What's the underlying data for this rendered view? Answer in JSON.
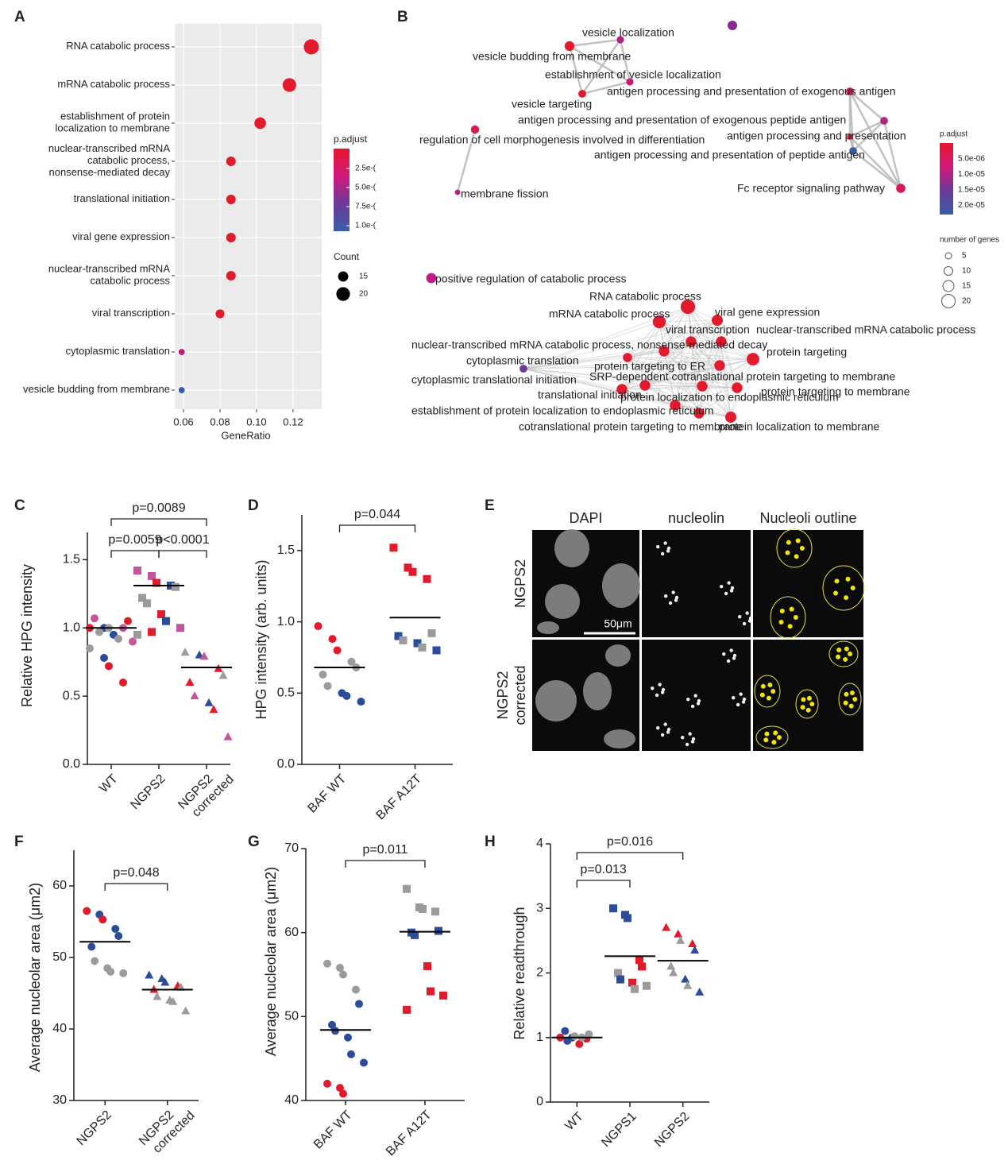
{
  "chart_data": [
    {
      "type": "dotplot",
      "panel": "A",
      "categories": [
        [
          "RNA catabolic process"
        ],
        [
          "mRNA catabolic process"
        ],
        [
          "establishment of protein",
          "localization to membrane"
        ],
        [
          "nuclear-transcribed mRNA",
          "catabolic process,",
          "nonsense-mediated decay"
        ],
        [
          "translational initiation"
        ],
        [
          "viral gene expression"
        ],
        [
          "nuclear-transcribed mRNA",
          "catabolic process"
        ],
        [
          "viral transcription"
        ],
        [
          "cytoplasmic translation"
        ],
        [
          "vesicle budding from membrane"
        ]
      ],
      "x": [
        0.13,
        0.118,
        0.102,
        0.086,
        0.086,
        0.086,
        0.086,
        0.08,
        0.059,
        0.059
      ],
      "counts": [
        22,
        20,
        17,
        14,
        14,
        14,
        14,
        13,
        9,
        9
      ],
      "colors": [
        "#e31a2c",
        "#e31a2c",
        "#e31a2c",
        "#e31a2c",
        "#e31a2c",
        "#e31a2c",
        "#e31a2c",
        "#e31a2c",
        "#c21a7a",
        "#3a5ba8"
      ],
      "xlabel": "GeneRatio",
      "xlim": [
        0.0552,
        0.1357
      ],
      "xticks": [
        {
          "value": 0.06,
          "label": "0.06"
        },
        {
          "value": 0.08,
          "label": "0.08"
        },
        {
          "value": 0.1,
          "label": "0.10"
        },
        {
          "value": 0.12,
          "label": "0.12"
        }
      ],
      "color_title": "p.adjust",
      "color_labels": [
        "2.5e-(",
        "5.0e-(",
        "7.5e-(",
        "1.0e-("
      ],
      "colorscale": [
        "#e8172f",
        "#d0187a",
        "#6b3a9b",
        "#3a5da8"
      ],
      "size_title": "Count",
      "size_labels": [
        15,
        20
      ]
    },
    {
      "type": "network",
      "panel": "B",
      "nodes": [
        {
          "label": "vesicle localization",
          "size": 7,
          "color": "#a8257f"
        },
        {
          "label": "vesicle budding from membrane",
          "size": 12,
          "color": "#e31a2c"
        },
        {
          "label": "establishment of vesicle localization",
          "size": 7,
          "color": "#c0207a"
        },
        {
          "label": "antigen processing and presentation of exogenous antigen",
          "size": 8,
          "color": "#d41a4e"
        },
        {
          "label": "vesicle targeting",
          "size": 8,
          "color": "#e31a2c"
        },
        {
          "label": "antigen processing and presentation of exogenous peptide antigen",
          "size": 8,
          "color": "#b0267f"
        },
        {
          "label": "regulation of cell morphogenesis involved in differentiation",
          "size": 9,
          "color": "#d41a4e"
        },
        {
          "label": "antigen processing and presentation",
          "size": 4,
          "color": "#e31a2c"
        },
        {
          "label": "antigen processing and presentation of peptide antigen",
          "size": 8,
          "color": "#3a5da8"
        },
        {
          "label": "Fc receptor signaling pathway",
          "size": 11,
          "color": "#d41a4e"
        },
        {
          "label": "membrane fission",
          "size": 3,
          "color": "#b8207a"
        },
        {
          "label": "positive regulation of catabolic process",
          "size": 13,
          "color": "#c2188a"
        },
        {
          "label": "RNA catabolic process",
          "size": 22,
          "color": "#e31a2c"
        },
        {
          "label": "viral gene expression",
          "size": 15,
          "color": "#e31a2c"
        },
        {
          "label": "mRNA catabolic process",
          "size": 19,
          "color": "#e31a2c"
        },
        {
          "label": "viral transcription",
          "size": 14,
          "color": "#e31a2c"
        },
        {
          "label": "nuclear-transcribed mRNA catabolic process",
          "size": 14,
          "color": "#e31a2c"
        },
        {
          "label": "nuclear-transcribed mRNA catabolic process, nonsense-mediated decay",
          "size": 14,
          "color": "#e31a2c"
        },
        {
          "label": "protein targeting",
          "size": 18,
          "color": "#e31a2c"
        },
        {
          "label": "cytoplasmic translation",
          "size": 8,
          "color": "#6a3a9b"
        },
        {
          "label": "protein targeting to ER",
          "size": 14,
          "color": "#e31a2c"
        },
        {
          "label": "SRP-dependent cotranslational protein targeting to membrane",
          "size": 14,
          "color": "#e31a2c"
        },
        {
          "label": "cytoplasmic translational initiation",
          "size": 11,
          "color": "#e31a2c"
        },
        {
          "label": "protein targeting to membrane",
          "size": 14,
          "color": "#e31a2c"
        },
        {
          "label": "translational initiation",
          "size": 14,
          "color": "#e31a2c"
        },
        {
          "label": "protein localization to endoplasmic reticulum",
          "size": 14,
          "color": "#e31a2c"
        },
        {
          "label": "establishment of protein localization to endoplasmic reticulum",
          "size": 14,
          "color": "#e31a2c"
        },
        {
          "label": "cotranslational protein targeting to membrane",
          "size": 14,
          "color": "#e31a2c"
        },
        {
          "label": "protein localization to membrane",
          "size": 15,
          "color": "#e31a2c"
        }
      ],
      "color_title": "p.adjust",
      "color_labels": [
        "5.0e-06",
        "1.0e-05",
        "1.5e-05",
        "2.0e-05"
      ],
      "colorscale": [
        "#e8172f",
        "#d0187a",
        "#6b3a9b",
        "#3a5da8"
      ],
      "size_title": "number of genes",
      "size_labels": [
        5,
        10,
        15,
        20
      ]
    },
    {
      "type": "strip",
      "panel": "C",
      "ylabel": "Relative HPG intensity",
      "categories": [
        [
          "WT"
        ],
        [
          "NGPS2"
        ],
        [
          "NGPS2",
          "corrected"
        ]
      ],
      "markers": [
        "circle",
        "square",
        "triangle"
      ],
      "ylim": [
        0,
        1.7
      ],
      "yticks": [
        {
          "value": 0,
          "label": "0.0"
        },
        0.5,
        {
          "value": 1,
          "label": "1.0"
        },
        1.5
      ],
      "points": [
        [
          1.0,
          1.0,
          1.0,
          1.0,
          1.05,
          1.07,
          0.97,
          0.95,
          0.92,
          0.9,
          0.85,
          0.78,
          0.72,
          0.6
        ],
        [
          1.42,
          1.38,
          1.33,
          1.31,
          1.3,
          1.22,
          1.18,
          1.1,
          1.05,
          1.0,
          0.95,
          0.97
        ],
        [
          0.82,
          0.8,
          0.79,
          0.7,
          0.65,
          0.6,
          0.5,
          0.45,
          0.4,
          0.2
        ]
      ],
      "point_colors": [
        [
          "#e31a2c",
          "#2b4c9b",
          "#9b9b9b",
          "#c4559c",
          "#e31a2c",
          "#c4559c",
          "#9b9b9b",
          "#2b4c9b",
          "#9b9b9b",
          "#c4559c",
          "#9b9b9b",
          "#2b4c9b",
          "#e31a2c",
          "#e31a2c"
        ],
        [
          "#c4559c",
          "#c4559c",
          "#e31a2c",
          "#2b4c9b",
          "#9b9b9b",
          "#9b9b9b",
          "#9b9b9b",
          "#e31a2c",
          "#2b4c9b",
          "#c4559c",
          "#9b9b9b",
          "#e31a2c"
        ],
        [
          "#9b9b9b",
          "#2b4c9b",
          "#c4559c",
          "#e31a2c",
          "#9b9b9b",
          "#e31a2c",
          "#c4559c",
          "#2b4c9b",
          "#e31a2c",
          "#c4559c"
        ]
      ],
      "means": [
        1.0,
        1.31,
        0.71
      ],
      "comparisons": [
        {
          "between": [
            0,
            2
          ],
          "label": "p=0.0089"
        },
        {
          "between": [
            0,
            1
          ],
          "label": "p=0.0059"
        },
        {
          "between": [
            1,
            2
          ],
          "label": "p<0.0001"
        }
      ]
    },
    {
      "type": "strip",
      "panel": "D",
      "ylabel": "HPG intensity (arb. units)",
      "categories": [
        [
          "BAF WT"
        ],
        [
          "BAF A12T"
        ]
      ],
      "markers": [
        "circle",
        "square"
      ],
      "ylim": [
        0,
        1.75
      ],
      "yticks": [
        {
          "value": 0,
          "label": "0.0"
        },
        0.5,
        {
          "value": 1,
          "label": "1.0"
        },
        1.5
      ],
      "points": [
        [
          0.97,
          0.88,
          0.8,
          0.72,
          0.68,
          0.63,
          0.55,
          0.5,
          0.48,
          0.44
        ],
        [
          1.52,
          1.38,
          1.35,
          1.3,
          0.92,
          0.9,
          0.87,
          0.85,
          0.82,
          0.8
        ]
      ],
      "point_colors": [
        [
          "#e31a2c",
          "#e31a2c",
          "#e31a2c",
          "#9b9b9b",
          "#9b9b9b",
          "#9b9b9b",
          "#9b9b9b",
          "#2b4c9b",
          "#2b4c9b",
          "#2b4c9b"
        ],
        [
          "#e31a2c",
          "#e31a2c",
          "#e31a2c",
          "#e31a2c",
          "#9b9b9b",
          "#2b4c9b",
          "#9b9b9b",
          "#2b4c9b",
          "#9b9b9b",
          "#2b4c9b"
        ]
      ],
      "means": [
        0.68,
        1.03
      ],
      "comparisons": [
        {
          "between": [
            0,
            1
          ],
          "label": "p=0.044"
        }
      ]
    },
    {
      "type": "strip",
      "panel": "F",
      "ylabel": "Average nucleolar area (μm2)",
      "categories": [
        [
          "NGPS2"
        ],
        [
          "NGPS2",
          "corrected"
        ]
      ],
      "markers": [
        "circle",
        "triangle"
      ],
      "ylim": [
        30,
        65
      ],
      "yticks": [
        30,
        40,
        50,
        60
      ],
      "points": [
        [
          56.5,
          56,
          55.3,
          54,
          53,
          51.5,
          49.5,
          48.5,
          48,
          47.8
        ],
        [
          47.5,
          47,
          46.5,
          46,
          45.8,
          45.5,
          44.5,
          44,
          43.8,
          42.5
        ]
      ],
      "point_colors": [
        [
          "#e31a2c",
          "#2b4c9b",
          "#e31a2c",
          "#2b4c9b",
          "#2b4c9b",
          "#2b4c9b",
          "#9b9b9b",
          "#9b9b9b",
          "#9b9b9b",
          "#9b9b9b"
        ],
        [
          "#2b4c9b",
          "#2b4c9b",
          "#2b4c9b",
          "#e31a2c",
          "#9b9b9b",
          "#e31a2c",
          "#9b9b9b",
          "#9b9b9b",
          "#9b9b9b",
          "#9b9b9b"
        ]
      ],
      "means": [
        52.2,
        45.5
      ],
      "comparisons": [
        {
          "between": [
            0,
            1
          ],
          "label": "p=0.048"
        }
      ]
    },
    {
      "type": "strip",
      "panel": "G",
      "ylabel": "Average nucleolar area (μm2)",
      "categories": [
        [
          "BAF WT"
        ],
        [
          "BAF A12T"
        ]
      ],
      "markers": [
        "circle",
        "square"
      ],
      "ylim": [
        40,
        70
      ],
      "yticks": [
        40,
        50,
        60,
        70
      ],
      "points": [
        [
          56.3,
          55.8,
          55,
          53.2,
          51.5,
          49,
          48.3,
          47.5,
          45.5,
          44.5,
          42,
          41.5,
          40.8
        ],
        [
          65.2,
          63,
          62.8,
          62.5,
          60.2,
          60,
          59.7,
          56,
          53,
          52.5,
          50.8
        ]
      ],
      "point_colors": [
        [
          "#9b9b9b",
          "#9b9b9b",
          "#9b9b9b",
          "#9b9b9b",
          "#2b4c9b",
          "#2b4c9b",
          "#2b4c9b",
          "#2b4c9b",
          "#2b4c9b",
          "#2b4c9b",
          "#e31a2c",
          "#e31a2c",
          "#e31a2c"
        ],
        [
          "#9b9b9b",
          "#9b9b9b",
          "#9b9b9b",
          "#9b9b9b",
          "#2b4c9b",
          "#2b4c9b",
          "#2b4c9b",
          "#e31a2c",
          "#e31a2c",
          "#e31a2c",
          "#e31a2c"
        ]
      ],
      "means": [
        48.4,
        60.1
      ],
      "comparisons": [
        {
          "between": [
            0,
            1
          ],
          "label": "p=0.011"
        }
      ]
    },
    {
      "type": "strip",
      "panel": "H",
      "ylabel": "Relative readthrough",
      "categories": [
        [
          "WT"
        ],
        [
          "NGPS1"
        ],
        [
          "NGPS2"
        ]
      ],
      "markers": [
        "circle",
        "square",
        "triangle"
      ],
      "ylim": [
        0,
        4
      ],
      "yticks": [
        0,
        1,
        2,
        3,
        4
      ],
      "points": [
        [
          1.0,
          1.0,
          1.02,
          0.98,
          1.05,
          1.1,
          0.95,
          0.9,
          1.0
        ],
        [
          3.0,
          2.9,
          2.85,
          2.2,
          2.1,
          2.0,
          1.9,
          1.85,
          1.75,
          1.8
        ],
        [
          2.7,
          2.6,
          2.5,
          2.45,
          2.35,
          2.1,
          2.0,
          1.9,
          1.8,
          1.7
        ]
      ],
      "point_colors": [
        [
          "#e31a2c",
          "#2b4c9b",
          "#9b9b9b",
          "#e31a2c",
          "#9b9b9b",
          "#2b4c9b",
          "#2b4c9b",
          "#e31a2c",
          "#9b9b9b"
        ],
        [
          "#2b4c9b",
          "#2b4c9b",
          "#2b4c9b",
          "#e31a2c",
          "#e31a2c",
          "#9b9b9b",
          "#2b4c9b",
          "#e31a2c",
          "#9b9b9b",
          "#9b9b9b"
        ],
        [
          "#e31a2c",
          "#e31a2c",
          "#9b9b9b",
          "#e31a2c",
          "#2b4c9b",
          "#9b9b9b",
          "#9b9b9b",
          "#2b4c9b",
          "#9b9b9b",
          "#2b4c9b"
        ]
      ],
      "means": [
        1.0,
        2.26,
        2.19
      ],
      "comparisons": [
        {
          "between": [
            0,
            2
          ],
          "label": "p=0.016"
        },
        {
          "between": [
            0,
            1
          ],
          "label": "p=0.013"
        }
      ]
    }
  ],
  "image_panel": {
    "panel": "E",
    "columns": [
      "DAPI",
      "nucleolin",
      "Nucleoli outline"
    ],
    "rows": [
      [
        "NGPS2"
      ],
      [
        "NGPS2",
        "corrected"
      ]
    ],
    "scale_bar": "50μm"
  }
}
